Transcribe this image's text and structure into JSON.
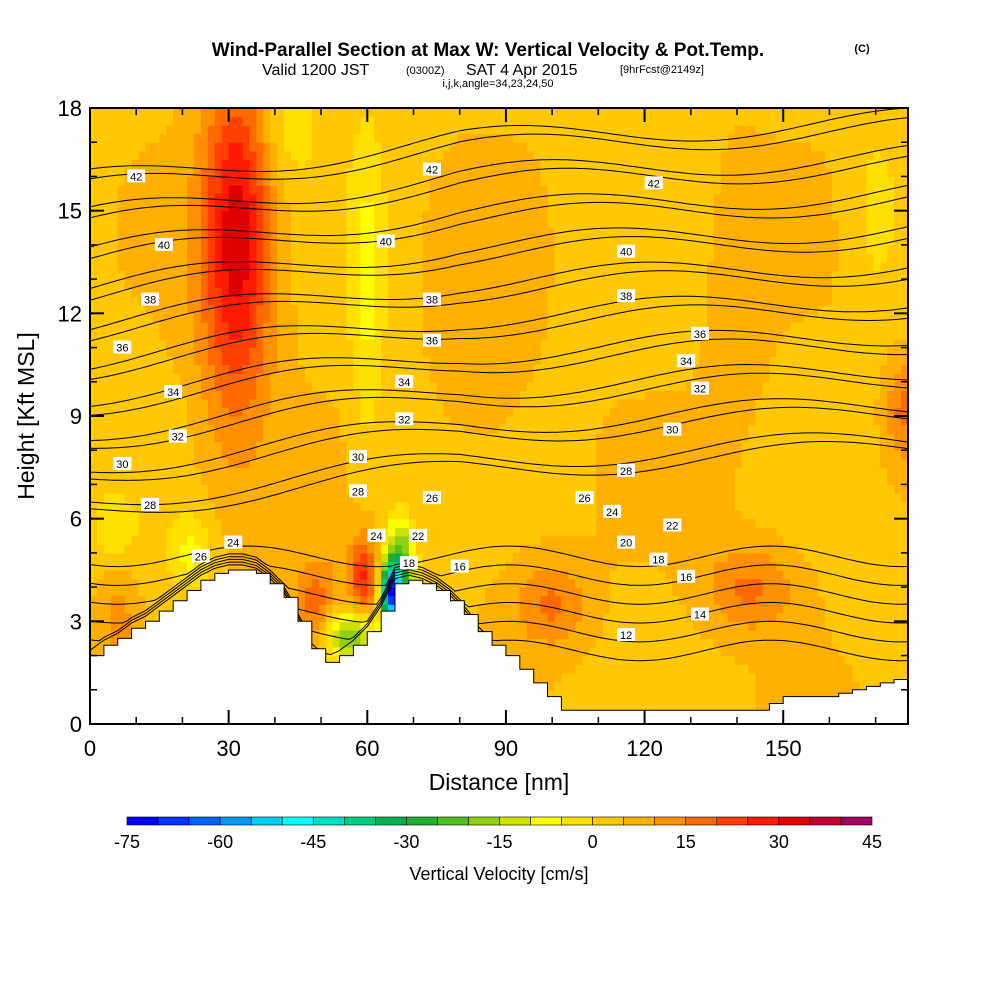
{
  "chart_data": {
    "type": "heatmap",
    "title": "Wind-Parallel Section at Max W: Vertical Velocity & Pot.Temp.",
    "title_mark": "(C)",
    "subtitle_valid": "Valid 1200 JST",
    "subtitle_utc": "(0300Z)",
    "subtitle_date": "SAT 4 Apr 2015",
    "subtitle_fcst": "[9hrFcst@2149z]",
    "subtitle_ijk": "i,j,k,angle=34,23,24,50",
    "xlabel": "Distance [nm]",
    "ylabel": "Height [Kft MSL]",
    "xlim": [
      0,
      177
    ],
    "ylim": [
      0,
      18
    ],
    "x_ticks": [
      "0",
      "30",
      "60",
      "90",
      "120",
      "150"
    ],
    "x_tick_values": [
      0,
      30,
      60,
      90,
      120,
      150
    ],
    "y_ticks": [
      "0",
      "3",
      "6",
      "9",
      "12",
      "15",
      "18"
    ],
    "y_tick_values": [
      0,
      3,
      6,
      9,
      12,
      15,
      18
    ],
    "colorbar": {
      "title": "Vertical Velocity [cm/s]",
      "labels": [
        "-75",
        "-60",
        "-45",
        "-30",
        "-15",
        "0",
        "15",
        "30",
        "45"
      ],
      "label_values": [
        -75,
        -60,
        -45,
        -30,
        -15,
        0,
        15,
        30,
        45
      ],
      "min": -75,
      "max": 45,
      "step": 5,
      "colors": [
        "#0000ff",
        "#0033ff",
        "#0066ff",
        "#0099ff",
        "#00ccff",
        "#00ffff",
        "#00e0c0",
        "#00cc80",
        "#00b050",
        "#20b030",
        "#50c020",
        "#90d010",
        "#d0e000",
        "#ffff00",
        "#ffe000",
        "#ffc800",
        "#ffb000",
        "#ff9000",
        "#ff6a00",
        "#ff4000",
        "#ff1a00",
        "#e00000",
        "#c00030",
        "#a00060",
        "#700080"
      ]
    },
    "terrain": {
      "x": [
        0,
        3,
        6,
        9,
        12,
        15,
        18,
        21,
        24,
        27,
        30,
        33,
        36,
        39,
        42,
        45,
        48,
        51,
        54,
        57,
        60,
        63,
        66,
        69,
        72,
        75,
        78,
        81,
        84,
        87,
        90,
        93,
        96,
        99,
        102,
        105,
        108,
        111,
        114,
        117,
        120,
        123,
        126,
        129,
        132,
        135,
        138,
        141,
        144,
        147,
        150,
        153,
        156,
        159,
        162,
        165,
        168,
        171,
        174,
        177
      ],
      "y": [
        2.0,
        2.3,
        2.5,
        2.8,
        3.0,
        3.3,
        3.6,
        3.9,
        4.2,
        4.4,
        4.5,
        4.5,
        4.4,
        4.1,
        3.7,
        3.0,
        2.2,
        1.8,
        2.0,
        2.3,
        2.7,
        3.3,
        4.1,
        4.2,
        4.1,
        3.9,
        3.6,
        3.2,
        2.7,
        2.3,
        2.0,
        1.6,
        1.2,
        0.8,
        0.4,
        0.4,
        0.4,
        0.4,
        0.4,
        0.4,
        0.4,
        0.4,
        0.4,
        0.4,
        0.4,
        0.4,
        0.4,
        0.4,
        0.4,
        0.6,
        0.8,
        0.8,
        0.8,
        0.8,
        0.9,
        1.0,
        1.1,
        1.2,
        1.3,
        1.3
      ]
    },
    "isentropes_K": [
      12,
      14,
      16,
      18,
      20,
      22,
      24,
      26,
      28,
      30,
      32,
      34,
      36,
      38,
      40,
      42
    ],
    "isentrope_labels": [
      {
        "text": "42",
        "x": 10,
        "y": 16.0
      },
      {
        "text": "42",
        "x": 74,
        "y": 16.2
      },
      {
        "text": "42",
        "x": 122,
        "y": 15.8
      },
      {
        "text": "40",
        "x": 16,
        "y": 14.0
      },
      {
        "text": "40",
        "x": 64,
        "y": 14.1
      },
      {
        "text": "40",
        "x": 116,
        "y": 13.8
      },
      {
        "text": "38",
        "x": 13,
        "y": 12.4
      },
      {
        "text": "38",
        "x": 74,
        "y": 12.4
      },
      {
        "text": "38",
        "x": 116,
        "y": 12.5
      },
      {
        "text": "36",
        "x": 7,
        "y": 11.0
      },
      {
        "text": "36",
        "x": 74,
        "y": 11.2
      },
      {
        "text": "36",
        "x": 132,
        "y": 11.4
      },
      {
        "text": "34",
        "x": 18,
        "y": 9.7
      },
      {
        "text": "34",
        "x": 68,
        "y": 10.0
      },
      {
        "text": "34",
        "x": 129,
        "y": 10.6
      },
      {
        "text": "32",
        "x": 19,
        "y": 8.4
      },
      {
        "text": "32",
        "x": 68,
        "y": 8.9
      },
      {
        "text": "32",
        "x": 132,
        "y": 9.8
      },
      {
        "text": "30",
        "x": 7,
        "y": 7.6
      },
      {
        "text": "30",
        "x": 58,
        "y": 7.8
      },
      {
        "text": "30",
        "x": 126,
        "y": 8.6
      },
      {
        "text": "28",
        "x": 13,
        "y": 6.4
      },
      {
        "text": "28",
        "x": 58,
        "y": 6.8
      },
      {
        "text": "28",
        "x": 116,
        "y": 7.4
      },
      {
        "text": "26",
        "x": 24,
        "y": 4.9
      },
      {
        "text": "26",
        "x": 74,
        "y": 6.6
      },
      {
        "text": "26",
        "x": 107,
        "y": 6.6
      },
      {
        "text": "24",
        "x": 31,
        "y": 5.3
      },
      {
        "text": "24",
        "x": 62,
        "y": 5.5
      },
      {
        "text": "24",
        "x": 113,
        "y": 6.2
      },
      {
        "text": "22",
        "x": 71,
        "y": 5.5
      },
      {
        "text": "22",
        "x": 126,
        "y": 5.8
      },
      {
        "text": "20",
        "x": 116,
        "y": 5.3
      },
      {
        "text": "18",
        "x": 69,
        "y": 4.7
      },
      {
        "text": "18",
        "x": 123,
        "y": 4.8
      },
      {
        "text": "16",
        "x": 80,
        "y": 4.6
      },
      {
        "text": "16",
        "x": 129,
        "y": 4.3
      },
      {
        "text": "14",
        "x": 132,
        "y": 3.2
      },
      {
        "text": "12",
        "x": 116,
        "y": 2.6
      }
    ],
    "velocity_features": [
      {
        "x": 32,
        "y": 14.6,
        "rx": 7,
        "ry": 4.5,
        "w": 20
      },
      {
        "x": 31,
        "y": 12.5,
        "rx": 9,
        "ry": 6,
        "w": 10
      },
      {
        "x": 59,
        "y": 4.3,
        "rx": 3,
        "ry": 1.2,
        "w": 22
      },
      {
        "x": 49,
        "y": 3.4,
        "rx": 5,
        "ry": 1.4,
        "w": 15
      },
      {
        "x": 56,
        "y": 2.6,
        "rx": 6,
        "ry": 0.8,
        "w": -25
      },
      {
        "x": 67,
        "y": 4.4,
        "rx": 3,
        "ry": 1.5,
        "w": -35
      },
      {
        "x": 65,
        "y": 3.8,
        "rx": 2,
        "ry": 0.8,
        "w": -55
      },
      {
        "x": 22,
        "y": 5.0,
        "rx": 5,
        "ry": 1.2,
        "w": -10
      },
      {
        "x": 5,
        "y": 5.8,
        "rx": 5,
        "ry": 1.0,
        "w": -8
      },
      {
        "x": 100,
        "y": 3.5,
        "rx": 8,
        "ry": 1.3,
        "w": 12
      },
      {
        "x": 143,
        "y": 4.0,
        "rx": 10,
        "ry": 1.3,
        "w": 12
      },
      {
        "x": 176,
        "y": 9.2,
        "rx": 4,
        "ry": 1.5,
        "w": 12
      },
      {
        "x": 60,
        "y": 12.8,
        "rx": 4,
        "ry": 5,
        "w": -10
      },
      {
        "x": 43,
        "y": 17.5,
        "rx": 6,
        "ry": 1.5,
        "w": -8
      },
      {
        "x": 140,
        "y": 12.0,
        "rx": 8,
        "ry": 5,
        "w": 3
      },
      {
        "x": 170,
        "y": 15.0,
        "rx": 6,
        "ry": 3,
        "w": -6
      },
      {
        "x": 6,
        "y": 3.0,
        "rx": 4,
        "ry": 1.5,
        "w": 8
      },
      {
        "x": 85,
        "y": 10.0,
        "rx": 12,
        "ry": 5,
        "w": 3
      }
    ]
  }
}
